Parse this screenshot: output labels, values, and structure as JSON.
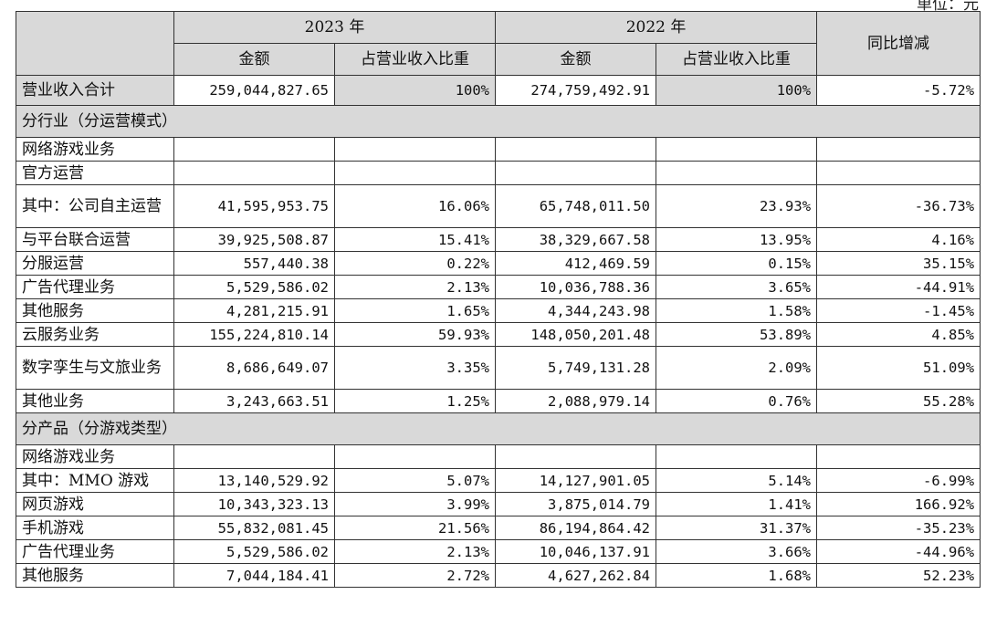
{
  "unit": "单位：元",
  "header": {
    "year1": "2023 年",
    "year2": "2022 年",
    "amount": "金额",
    "share": "占营业收入比重",
    "yoy": "同比增减"
  },
  "rows": [
    {
      "type": "total",
      "label": "营业收入合计",
      "a1": "259,044,827.65",
      "s1": "100%",
      "a2": "274,759,492.91",
      "s2": "100%",
      "yoy": "-5.72%"
    },
    {
      "type": "section",
      "label": "分行业（分运营模式）"
    },
    {
      "type": "r",
      "label": "网络游戏业务",
      "a1": "",
      "s1": "",
      "a2": "",
      "s2": "",
      "yoy": ""
    },
    {
      "type": "r",
      "label": "官方运营",
      "a1": "",
      "s1": "",
      "a2": "",
      "s2": "",
      "yoy": ""
    },
    {
      "type": "tall",
      "label": "其中：公司自主运营",
      "a1": "41,595,953.75",
      "s1": "16.06%",
      "a2": "65,748,011.50",
      "s2": "23.93%",
      "yoy": "-36.73%"
    },
    {
      "type": "r",
      "label": "与平台联合运营",
      "a1": "39,925,508.87",
      "s1": "15.41%",
      "a2": "38,329,667.58",
      "s2": "13.95%",
      "yoy": "4.16%"
    },
    {
      "type": "r",
      "label": "分服运营",
      "a1": "557,440.38",
      "s1": "0.22%",
      "a2": "412,469.59",
      "s2": "0.15%",
      "yoy": "35.15%"
    },
    {
      "type": "r",
      "label": "广告代理业务",
      "a1": "5,529,586.02",
      "s1": "2.13%",
      "a2": "10,036,788.36",
      "s2": "3.65%",
      "yoy": "-44.91%"
    },
    {
      "type": "r",
      "label": "其他服务",
      "a1": "4,281,215.91",
      "s1": "1.65%",
      "a2": "4,344,243.98",
      "s2": "1.58%",
      "yoy": "-1.45%"
    },
    {
      "type": "r",
      "label": "云服务业务",
      "a1": "155,224,810.14",
      "s1": "59.93%",
      "a2": "148,050,201.48",
      "s2": "53.89%",
      "yoy": "4.85%"
    },
    {
      "type": "tall",
      "label": "数字孪生与文旅业务",
      "a1": "8,686,649.07",
      "s1": "3.35%",
      "a2": "5,749,131.28",
      "s2": "2.09%",
      "yoy": "51.09%"
    },
    {
      "type": "r",
      "label": "其他业务",
      "a1": "3,243,663.51",
      "s1": "1.25%",
      "a2": "2,088,979.14",
      "s2": "0.76%",
      "yoy": "55.28%"
    },
    {
      "type": "section",
      "label": "分产品（分游戏类型）"
    },
    {
      "type": "r",
      "label": "网络游戏业务",
      "a1": "",
      "s1": "",
      "a2": "",
      "s2": "",
      "yoy": ""
    },
    {
      "type": "r",
      "label": "其中：MMO 游戏",
      "a1": "13,140,529.92",
      "s1": "5.07%",
      "a2": "14,127,901.05",
      "s2": "5.14%",
      "yoy": "-6.99%"
    },
    {
      "type": "r",
      "label": "网页游戏",
      "a1": "10,343,323.13",
      "s1": "3.99%",
      "a2": "3,875,014.79",
      "s2": "1.41%",
      "yoy": "166.92%"
    },
    {
      "type": "r",
      "label": "手机游戏",
      "a1": "55,832,081.45",
      "s1": "21.56%",
      "a2": "86,194,864.42",
      "s2": "31.37%",
      "yoy": "-35.23%"
    },
    {
      "type": "r",
      "label": "广告代理业务",
      "a1": "5,529,586.02",
      "s1": "2.13%",
      "a2": "10,046,137.91",
      "s2": "3.66%",
      "yoy": "-44.96%"
    },
    {
      "type": "r",
      "label": "其他服务",
      "a1": "7,044,184.41",
      "s1": "2.72%",
      "a2": "4,627,262.84",
      "s2": "1.68%",
      "yoy": "52.23%"
    }
  ]
}
